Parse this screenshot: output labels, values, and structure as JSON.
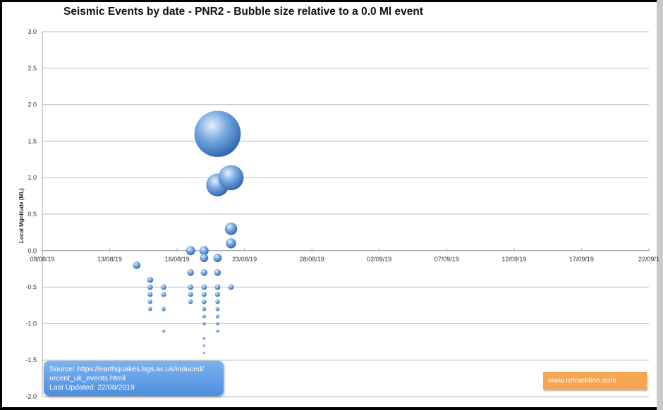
{
  "chart_data": {
    "type": "scatter",
    "subtype": "bubble",
    "title": "Seismic Events by date - PNR2 - Bubble size relative to a 0.0 Ml event",
    "xlabel": "",
    "ylabel": "Local Mgnitude (ML)",
    "ylim": [
      -2.0,
      3.0
    ],
    "yticks": [
      "3.0",
      "2.5",
      "2.0",
      "1.5",
      "1.0",
      "0.5",
      "0.0",
      "-0.5",
      "-1.0",
      "-1.5",
      "-2.0"
    ],
    "xlim": [
      "08/08/19",
      "22/09/19"
    ],
    "xticks": [
      "08/08/19",
      "13/08/19",
      "18/08/19",
      "23/08/19",
      "28/08/19",
      "02/09/19",
      "07/09/19",
      "12/09/19",
      "17/09/19",
      "22/09/1"
    ],
    "grid": "horizontal",
    "bubble_color": "#5b93d6",
    "points": [
      {
        "date": "15/08/19",
        "ml": [
          -0.2
        ]
      },
      {
        "date": "16/08/19",
        "ml": [
          -0.4,
          -0.5,
          -0.6,
          -0.7,
          -0.8
        ]
      },
      {
        "date": "17/08/19",
        "ml": [
          -0.5,
          -0.6,
          -0.8,
          -1.1
        ]
      },
      {
        "date": "19/08/19",
        "ml": [
          0.0,
          -0.3,
          -0.5,
          -0.6,
          -0.7
        ]
      },
      {
        "date": "20/08/19",
        "ml": [
          0.0,
          -0.1,
          -0.3,
          -0.5,
          -0.6,
          -0.7,
          -0.8,
          -0.9,
          -1.0,
          -1.2,
          -1.3,
          -1.4
        ]
      },
      {
        "date": "21/08/19",
        "ml": [
          1.6,
          0.9,
          -0.1,
          -0.3,
          -0.5,
          -0.6,
          -0.7,
          -0.8,
          -0.9,
          -1.0,
          -1.1
        ]
      },
      {
        "date": "22/08/19",
        "ml": [
          1.0,
          0.3,
          0.1,
          -0.5
        ]
      }
    ]
  },
  "annotations": {
    "source_line1": "Source: https://earthquakes.bgs.ac.uk/induced/",
    "source_line2": "recent_uk_events.htmll",
    "source_line3": "Last Updated:  22/08/2019",
    "brand": "www.refracktion.com",
    "source_color": "#5b98e6",
    "brand_color": "#f6a552"
  }
}
